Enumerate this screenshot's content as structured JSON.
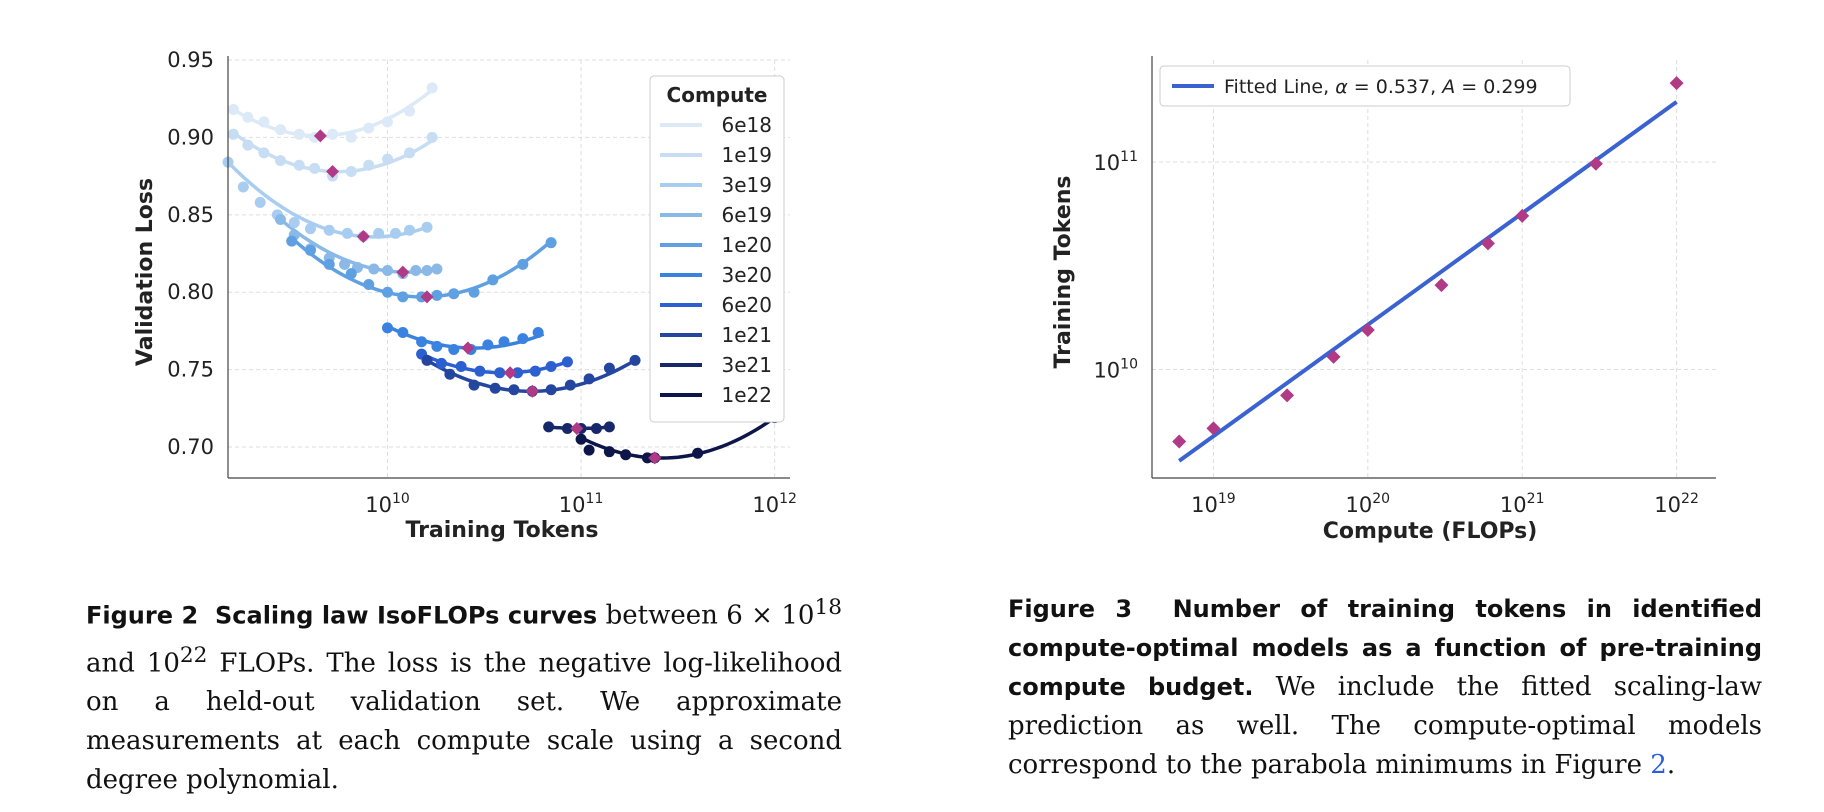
{
  "chart_data": [
    {
      "type": "line",
      "xscale": "log",
      "xlabel": "Training Tokens",
      "ylabel": "Validation Loss",
      "xlim": [
        1500000000.0,
        1200000000000.0
      ],
      "ylim": [
        0.68,
        0.95
      ],
      "x_ticks": [
        {
          "value": 10000000000.0,
          "base": "10",
          "exp": "10"
        },
        {
          "value": 100000000000.0,
          "base": "10",
          "exp": "11"
        },
        {
          "value": 1000000000000.0,
          "base": "10",
          "exp": "12"
        }
      ],
      "y_ticks": [
        {
          "value": 0.7,
          "label": "0.70"
        },
        {
          "value": 0.75,
          "label": "0.75"
        },
        {
          "value": 0.8,
          "label": "0.80"
        },
        {
          "value": 0.85,
          "label": "0.85"
        },
        {
          "value": 0.9,
          "label": "0.90"
        },
        {
          "value": 0.95,
          "label": "0.95"
        }
      ],
      "grid": true,
      "legend": {
        "title": "Compute",
        "placement": "top-right"
      },
      "series": [
        {
          "name": "6e18",
          "color": "#dce9f7",
          "x": [
            1600000000.0,
            1900000000.0,
            2300000000.0,
            2800000000.0,
            3500000000.0,
            4200000000.0,
            5200000000.0,
            6500000000.0,
            8000000000.0,
            10000000000.0,
            13000000000.0,
            17000000000.0
          ],
          "y": [
            0.918,
            0.913,
            0.91,
            0.905,
            0.902,
            0.9,
            0.902,
            0.9,
            0.906,
            0.91,
            0.917,
            0.932
          ],
          "fit_x": [
            1600000000.0,
            17500000000.0
          ],
          "fit": [
            0.918,
            0.932
          ],
          "opt_x": 4500000000.0,
          "opt_y": 0.901
        },
        {
          "name": "1e19",
          "color": "#c6ddf3",
          "x": [
            1600000000.0,
            1900000000.0,
            2300000000.0,
            2800000000.0,
            3500000000.0,
            4200000000.0,
            5200000000.0,
            6500000000.0,
            8000000000.0,
            10000000000.0,
            13000000000.0,
            17000000000.0
          ],
          "y": [
            0.902,
            0.895,
            0.89,
            0.885,
            0.882,
            0.88,
            0.875,
            0.878,
            0.882,
            0.886,
            0.89,
            0.9
          ],
          "fit_x": [
            1600000000.0,
            18000000000.0
          ],
          "fit": [
            0.903,
            0.9
          ],
          "opt_x": 5200000000.0,
          "opt_y": 0.878
        },
        {
          "name": "3e19",
          "color": "#a9cdf0",
          "x": [
            1500000000.0,
            1800000000.0,
            2200000000.0,
            2700000000.0,
            3300000000.0,
            4000000000.0,
            5000000000.0,
            6200000000.0,
            7500000000.0,
            9000000000.0,
            11000000000.0,
            13000000000.0,
            16000000000.0
          ],
          "y": [
            0.884,
            0.868,
            0.858,
            0.85,
            0.845,
            0.841,
            0.84,
            0.838,
            0.836,
            0.838,
            0.838,
            0.84,
            0.842
          ],
          "fit_x": [
            1500000000.0,
            16000000000.0
          ],
          "fit": [
            0.884,
            0.842
          ],
          "opt_x": 7500000000.0,
          "opt_y": 0.836
        },
        {
          "name": "6e19",
          "color": "#8ab9e8",
          "x": [
            2800000000.0,
            3300000000.0,
            4000000000.0,
            5000000000.0,
            6000000000.0,
            7000000000.0,
            8500000000.0,
            10000000000.0,
            12000000000.0,
            14000000000.0,
            16000000000.0,
            18000000000.0
          ],
          "y": [
            0.847,
            0.837,
            0.828,
            0.822,
            0.818,
            0.816,
            0.815,
            0.814,
            0.812,
            0.814,
            0.814,
            0.815
          ],
          "fit_x": [
            2800000000.0,
            18000000000.0
          ],
          "fit": [
            0.847,
            0.815
          ],
          "opt_x": 12000000000.0,
          "opt_y": 0.813
        },
        {
          "name": "1e20",
          "color": "#5fa0e3",
          "x": [
            3200000000.0,
            4000000000.0,
            5000000000.0,
            6500000000.0,
            8000000000.0,
            10000000000.0,
            12000000000.0,
            15000000000.0,
            18000000000.0,
            22000000000.0,
            28000000000.0,
            35000000000.0,
            50000000000.0,
            70000000000.0
          ],
          "y": [
            0.833,
            0.827,
            0.818,
            0.812,
            0.805,
            0.8,
            0.797,
            0.797,
            0.798,
            0.799,
            0.8,
            0.808,
            0.818,
            0.832
          ],
          "fit_x": [
            3200000000.0,
            70000000000.0
          ],
          "fit": [
            0.835,
            0.833
          ],
          "opt_x": 16000000000.0,
          "opt_y": 0.797
        },
        {
          "name": "3e20",
          "color": "#3a82e0",
          "x": [
            10000000000.0,
            12000000000.0,
            15000000000.0,
            18000000000.0,
            22000000000.0,
            27000000000.0,
            33000000000.0,
            40000000000.0,
            50000000000.0,
            60000000000.0
          ],
          "y": [
            0.777,
            0.774,
            0.768,
            0.765,
            0.763,
            0.763,
            0.766,
            0.768,
            0.77,
            0.774
          ],
          "fit_x": [
            10000000000.0,
            64000000000.0
          ],
          "fit": [
            0.778,
            0.773
          ],
          "opt_x": 26000000000.0,
          "opt_y": 0.764
        },
        {
          "name": "6e20",
          "color": "#2c5fcf",
          "x": [
            15000000000.0,
            19000000000.0,
            24000000000.0,
            30000000000.0,
            38000000000.0,
            47000000000.0,
            58000000000.0,
            70000000000.0,
            85000000000.0
          ],
          "y": [
            0.76,
            0.754,
            0.752,
            0.749,
            0.748,
            0.748,
            0.749,
            0.752,
            0.755
          ],
          "fit_x": [
            15000000000.0,
            85000000000.0
          ],
          "fit": [
            0.76,
            0.755
          ],
          "opt_x": 43000000000.0,
          "opt_y": 0.748
        },
        {
          "name": "1e21",
          "color": "#24469e",
          "x": [
            16000000000.0,
            21000000000.0,
            28000000000.0,
            36000000000.0,
            45000000000.0,
            56000000000.0,
            70000000000.0,
            88000000000.0,
            110000000000.0,
            140000000000.0,
            190000000000.0
          ],
          "y": [
            0.756,
            0.747,
            0.74,
            0.738,
            0.737,
            0.736,
            0.737,
            0.74,
            0.744,
            0.751,
            0.756
          ],
          "fit_x": [
            16000000000.0,
            190000000000.0
          ],
          "fit": [
            0.756,
            0.756
          ],
          "opt_x": 56000000000.0,
          "opt_y": 0.736
        },
        {
          "name": "3e21",
          "color": "#16286a",
          "x": [
            68000000000.0,
            85000000000.0,
            100000000000.0,
            120000000000.0,
            140000000000.0
          ],
          "y": [
            0.713,
            0.712,
            0.712,
            0.712,
            0.713
          ],
          "fit_x": [
            68000000000.0,
            140000000000.0
          ],
          "fit": [
            0.713,
            0.713
          ],
          "opt_x": 95000000000.0,
          "opt_y": 0.712
        },
        {
          "name": "1e22",
          "color": "#0c1648",
          "x": [
            100000000000.0,
            110000000000.0,
            140000000000.0,
            170000000000.0,
            220000000000.0,
            240000000000.0,
            400000000000.0,
            1000000000000.0
          ],
          "y": [
            0.705,
            0.698,
            0.697,
            0.695,
            0.693,
            0.693,
            0.696,
            0.719
          ],
          "fit_x": [
            100000000000.0,
            1000000000000.0
          ],
          "fit": [
            0.706,
            0.719
          ],
          "opt_x": 240000000000.0,
          "opt_y": 0.693
        }
      ]
    },
    {
      "type": "scatter",
      "xscale": "log",
      "yscale": "log",
      "xlabel": "Compute (FLOPs)",
      "ylabel": "Training Tokens",
      "xlim": [
        4e+18,
        1.8e+22
      ],
      "ylim": [
        3000000000.0,
        310000000000.0
      ],
      "x_ticks": [
        {
          "value": 1e+19,
          "base": "10",
          "exp": "19"
        },
        {
          "value": 1e+20,
          "base": "10",
          "exp": "20"
        },
        {
          "value": 1e+21,
          "base": "10",
          "exp": "21"
        },
        {
          "value": 1e+22,
          "base": "10",
          "exp": "22"
        }
      ],
      "y_ticks": [
        {
          "value": 10000000000.0,
          "base": "10",
          "exp": "10"
        },
        {
          "value": 100000000000.0,
          "base": "10",
          "exp": "11"
        }
      ],
      "grid": true,
      "legend": {
        "placement": "top-left",
        "entry_text": "Fitted Line, ",
        "alpha_symbol": "α",
        "alpha_value": " = 0.537, ",
        "a_symbol": "A",
        "a_value": " = 0.299"
      },
      "fitted_line": {
        "alpha": 0.537,
        "A": 0.299,
        "color": "#3a62d0"
      },
      "points": {
        "color": "#b13a86",
        "x": [
          6e+18,
          1e+19,
          3e+19,
          6e+19,
          1e+20,
          3e+20,
          6e+20,
          1e+21,
          3e+21,
          1e+22
        ],
        "y": [
          4500000000.0,
          5200000000.0,
          7500000000.0,
          11500000000.0,
          15500000000.0,
          25500000000.0,
          40500000000.0,
          55000000000.0,
          98000000000.0,
          240000000000.0
        ]
      }
    }
  ],
  "captions": {
    "fig2": {
      "label": "Figure 2",
      "title": "Scaling law IsoFLOPs curves",
      "text_a": " between 6 × 10",
      "sup_a": "18",
      "text_b": " and 10",
      "sup_b": "22",
      "text_c": " FLOPs. The loss is the negative log-likelihood on a held-out validation set. We approximate measurements at each compute scale using a second degree polynomial."
    },
    "fig3": {
      "label": "Figure 3",
      "title": "Number of training tokens in identified compute-optimal models as a function of pre-training compute budget.",
      "text_a": " We include the fitted scaling-law prediction as well. The compute-optimal models correspond to the parabola minimums in Figure ",
      "ref": "2",
      "text_b": "."
    }
  }
}
